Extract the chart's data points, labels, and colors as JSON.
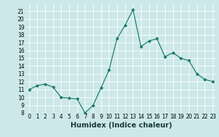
{
  "x": [
    0,
    1,
    2,
    3,
    4,
    5,
    6,
    7,
    8,
    9,
    10,
    11,
    12,
    13,
    14,
    15,
    16,
    17,
    18,
    19,
    20,
    21,
    22,
    23
  ],
  "y": [
    11,
    11.5,
    11.7,
    11.3,
    10,
    9.9,
    9.8,
    8,
    9,
    11.2,
    13.5,
    17.5,
    19.2,
    21.2,
    16.5,
    17.2,
    17.5,
    15.2,
    15.7,
    15,
    14.7,
    13,
    12.3,
    12
  ],
  "line_color": "#1a7a6a",
  "marker": "D",
  "marker_size": 2.2,
  "bg_color": "#cce8e8",
  "grid_color": "#b0d0d0",
  "xlabel": "Humidex (Indice chaleur)",
  "xlim": [
    -0.5,
    23.5
  ],
  "ylim": [
    8,
    22
  ],
  "yticks": [
    8,
    9,
    10,
    11,
    12,
    13,
    14,
    15,
    16,
    17,
    18,
    19,
    20,
    21
  ],
  "xticks": [
    0,
    1,
    2,
    3,
    4,
    5,
    6,
    7,
    8,
    9,
    10,
    11,
    12,
    13,
    14,
    15,
    16,
    17,
    18,
    19,
    20,
    21,
    22,
    23
  ],
  "tick_label_size": 5.5,
  "xlabel_size": 7.5
}
